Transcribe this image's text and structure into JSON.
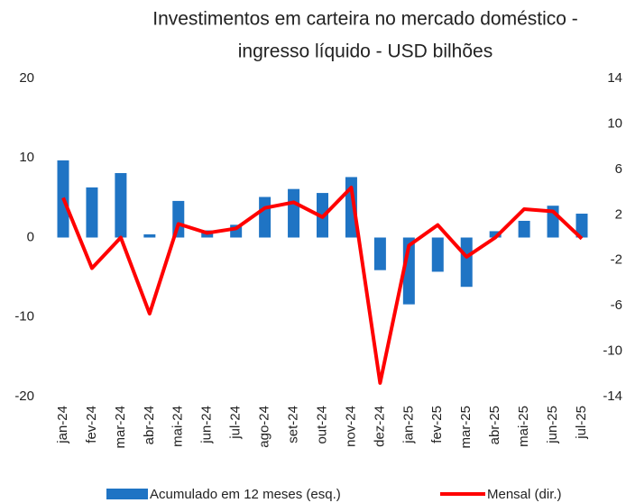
{
  "chart_data": {
    "type": "bar_line",
    "title": [
      "Investimentos em carteira no mercado doméstico -",
      "ingresso líquido - USD bilhões"
    ],
    "categories": [
      "jan-24",
      "fev-24",
      "mar-24",
      "abr-24",
      "mai-24",
      "jun-24",
      "jul-24",
      "ago-24",
      "set-24",
      "out-24",
      "nov-24",
      "dez-24",
      "jan-25",
      "fev-25",
      "mar-25",
      "abr-25",
      "mai-25",
      "jun-25",
      "jul-25"
    ],
    "series": [
      {
        "name": "Acumulado em 12 meses (esq.)",
        "color": "#1f74c4",
        "kind": "bar",
        "values": [
          9.7,
          6.3,
          8.1,
          0.4,
          4.6,
          0.9,
          1.6,
          5.1,
          6.1,
          5.6,
          7.6,
          -4.1,
          -8.4,
          -4.3,
          -6.2,
          0.8,
          2.1,
          4.0,
          3.0
        ]
      },
      {
        "name": "Mensal (dir.)",
        "color": "#ff0000",
        "kind": "line",
        "axis": "y2",
        "values": [
          3.5,
          -2.7,
          0,
          -6.7,
          1.2,
          0.4,
          0.8,
          2.6,
          3.1,
          1.8,
          4.4,
          -12.8,
          -0.7,
          1.1,
          -1.7,
          0,
          2.5,
          2.3,
          -0.1
        ]
      }
    ],
    "ylim": [
      -20,
      20
    ],
    "yticks": [
      20,
      10,
      0,
      -10,
      -20
    ],
    "y2lim": [
      -14,
      14
    ],
    "y2ticks": [
      14,
      10,
      6,
      2,
      -2,
      -6,
      -10,
      -14
    ]
  }
}
